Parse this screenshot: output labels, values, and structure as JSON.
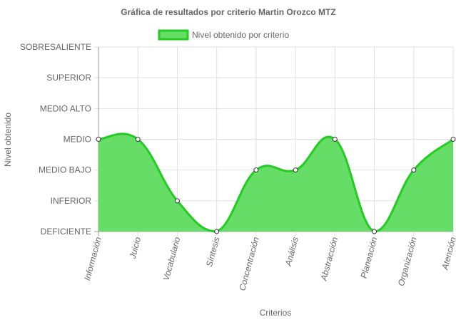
{
  "chart_data": {
    "type": "area",
    "title": "Gráfica de resultados por criterio Martin Orozco MTZ",
    "xlabel": "Criterios",
    "ylabel": "Nivel obtenido",
    "y_levels": [
      "DEFICIENTE",
      "INFERIOR",
      "MEDIO BAJO",
      "MEDIO",
      "MEDIO ALTO",
      "SUPERIOR",
      "SOBRESALIENTE"
    ],
    "categories": [
      "Información",
      "Juicio",
      "Vocabulario",
      "Síntesis",
      "Concentración",
      "Análisis",
      "Abstracción",
      "Planeación",
      "Organización",
      "Atención"
    ],
    "series": [
      {
        "name": "Nivel obtenido por criterio",
        "values": [
          "MEDIO",
          "MEDIO",
          "INFERIOR",
          "DEFICIENTE",
          "MEDIO BAJO",
          "MEDIO BAJO",
          "MEDIO",
          "DEFICIENTE",
          "MEDIO BAJO",
          "MEDIO"
        ]
      }
    ],
    "legend_position": "top",
    "grid": true,
    "colors": {
      "fill": "#66dd66",
      "line": "#22cc22",
      "grid": "#e0e0e0",
      "axis": "#999999"
    }
  }
}
